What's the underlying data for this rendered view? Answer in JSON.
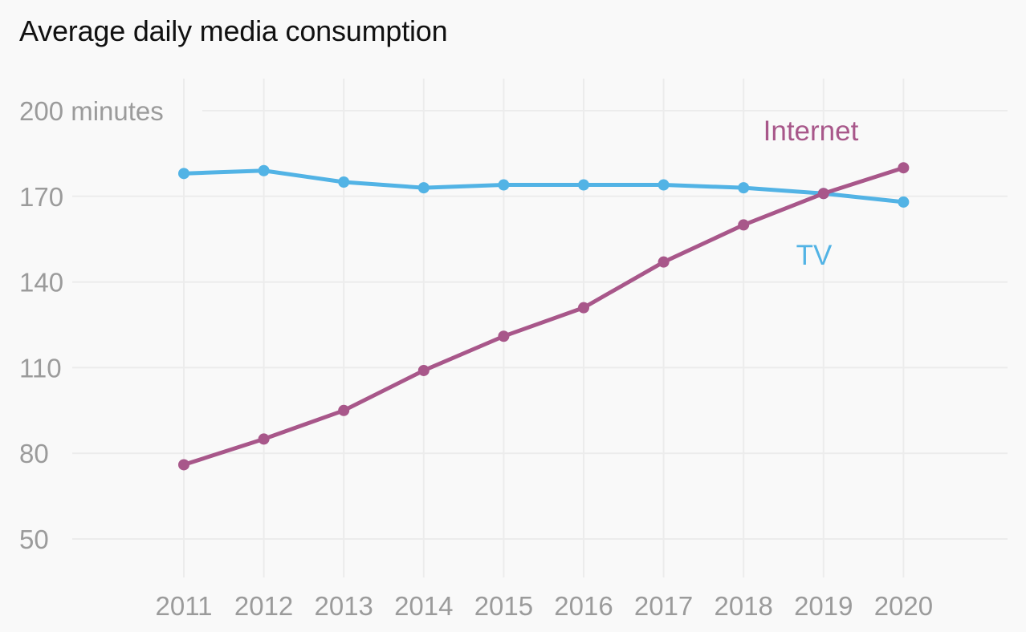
{
  "chart_data": {
    "type": "line",
    "title": "Average daily media consumption",
    "xlabel": "",
    "ylabel": "minutes",
    "x": [
      "2011",
      "2012",
      "2013",
      "2014",
      "2015",
      "2016",
      "2017",
      "2018",
      "2019",
      "2020"
    ],
    "yticks": [
      {
        "value": 200,
        "label": "200 minutes"
      },
      {
        "value": 170,
        "label": "170"
      },
      {
        "value": 140,
        "label": "140"
      },
      {
        "value": 110,
        "label": "110"
      },
      {
        "value": 80,
        "label": "80"
      },
      {
        "value": 50,
        "label": "50"
      }
    ],
    "ylim": [
      50,
      200
    ],
    "grid": true,
    "series": [
      {
        "name": "TV",
        "label": "TV",
        "color": "#52b3e5",
        "values": [
          178,
          179,
          175,
          173,
          174,
          174,
          174,
          173,
          171,
          168
        ]
      },
      {
        "name": "Internet",
        "label": "Internet",
        "color": "#a8578a",
        "values": [
          76,
          85,
          95,
          109,
          121,
          131,
          147,
          160,
          171,
          180
        ]
      }
    ],
    "legend": "direct-labels"
  }
}
